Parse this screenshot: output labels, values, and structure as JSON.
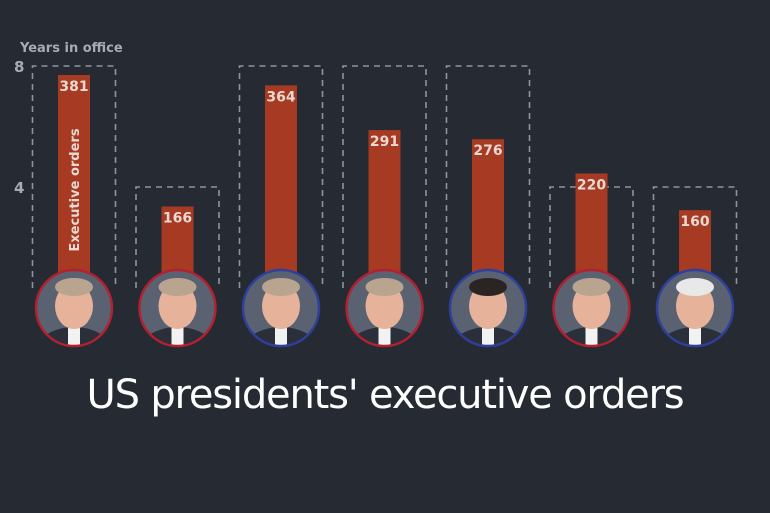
{
  "title": "US presidents' executive orders",
  "colors": {
    "background": "#262a33",
    "bar": "#a63a22",
    "frame": "#8f939b",
    "axis_text": "#a7abb3",
    "value_text": "#e9d9d2",
    "republican_ring": "#b3202f",
    "democrat_ring": "#2f3f9c"
  },
  "chart_data": {
    "type": "bar",
    "ylabel": "Years in office",
    "bar_series_label": "Executive orders",
    "yticks": [
      4,
      8
    ],
    "ylim_years": [
      0,
      8
    ],
    "categories": [
      {
        "party": "republican",
        "portrait": "president-portrait-1",
        "executive_orders": 381,
        "years_in_office": 8
      },
      {
        "party": "republican",
        "portrait": "president-portrait-2",
        "executive_orders": 166,
        "years_in_office": 4
      },
      {
        "party": "democrat",
        "portrait": "president-portrait-3",
        "executive_orders": 364,
        "years_in_office": 8
      },
      {
        "party": "republican",
        "portrait": "president-portrait-4",
        "executive_orders": 291,
        "years_in_office": 8
      },
      {
        "party": "democrat",
        "portrait": "president-portrait-5",
        "executive_orders": 276,
        "years_in_office": 8
      },
      {
        "party": "republican",
        "portrait": "president-portrait-6",
        "executive_orders": 220,
        "years_in_office": 4
      },
      {
        "party": "democrat",
        "portrait": "president-portrait-7",
        "executive_orders": 160,
        "years_in_office": 4
      }
    ]
  }
}
